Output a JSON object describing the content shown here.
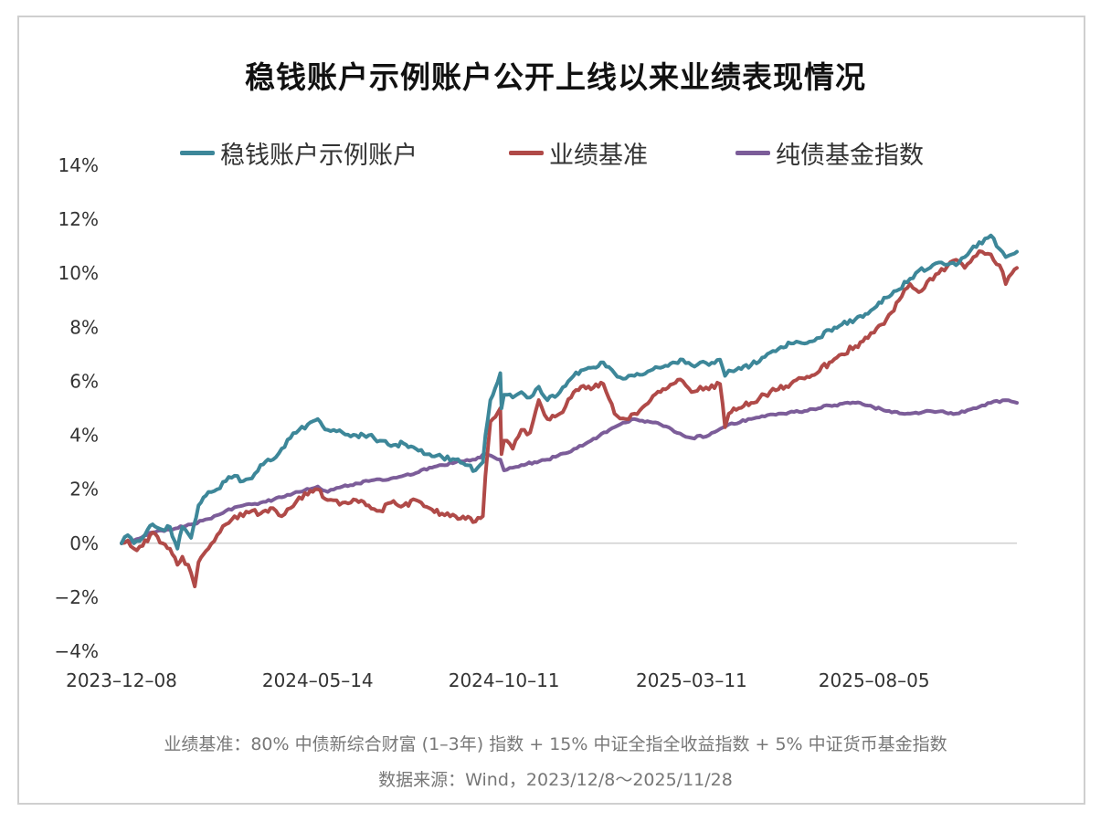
{
  "title": "稳钱账户示例账户公开上线以来业绩表现情况",
  "footnote": {
    "line1": "业绩基准：80% 中债新综合财富 (1–3年) 指数 + 15% 中证全指全收益指数 + 5% 中证货币基金指数",
    "line2": "数据来源：Wind，2023/12/8～2025/11/28"
  },
  "colors": {
    "series1": "#3d8799",
    "series2": "#b04a48",
    "series3": "#7c5d99",
    "grid": "#d0d0d0",
    "text": "#333333"
  },
  "chart_data": {
    "type": "line",
    "title": "稳钱账户示例账户公开上线以来业绩表现情况",
    "xlabel": "",
    "ylabel": "",
    "y_unit": "%",
    "ylim": [
      -4,
      14
    ],
    "y_ticks": [
      -4,
      -2,
      0,
      2,
      4,
      6,
      8,
      10,
      12,
      14
    ],
    "y_tick_labels": [
      "−4%",
      "−2%",
      "0%",
      "2%",
      "4%",
      "6%",
      "8%",
      "10%",
      "12%",
      "14%"
    ],
    "x_range": [
      "2023-12-08",
      "2025-11-28"
    ],
    "x_tick_labels": [
      "2023–12–08",
      "2024–05–14",
      "2024–10–11",
      "2025–03–11",
      "2025–08–05"
    ],
    "x_ticks": [
      "2023-12-08",
      "2024-05-14",
      "2024-10-11",
      "2025-03-11",
      "2025-08-05"
    ],
    "grid": "zero-line only",
    "legend_position": "top",
    "series": [
      {
        "name": "稳钱账户示例账户",
        "points": [
          [
            "2023-12-08",
            0.0
          ],
          [
            "2023-12-13",
            0.3
          ],
          [
            "2023-12-18",
            0.0
          ],
          [
            "2023-12-25",
            0.2
          ],
          [
            "2024-01-02",
            0.7
          ],
          [
            "2024-01-10",
            0.5
          ],
          [
            "2024-01-16",
            0.6
          ],
          [
            "2024-01-22",
            -0.2
          ],
          [
            "2024-01-26",
            0.6
          ],
          [
            "2024-02-02",
            0.2
          ],
          [
            "2024-02-08",
            1.4
          ],
          [
            "2024-02-16",
            1.9
          ],
          [
            "2024-02-23",
            2.0
          ],
          [
            "2024-03-01",
            2.3
          ],
          [
            "2024-03-08",
            2.5
          ],
          [
            "2024-03-15",
            2.3
          ],
          [
            "2024-03-22",
            2.4
          ],
          [
            "2024-03-29",
            2.9
          ],
          [
            "2024-04-08",
            3.1
          ],
          [
            "2024-04-15",
            3.5
          ],
          [
            "2024-04-22",
            3.9
          ],
          [
            "2024-04-29",
            4.2
          ],
          [
            "2024-05-06",
            4.4
          ],
          [
            "2024-05-14",
            4.6
          ],
          [
            "2024-05-22",
            4.2
          ],
          [
            "2024-06-03",
            4.1
          ],
          [
            "2024-06-14",
            4.0
          ],
          [
            "2024-06-24",
            4.0
          ],
          [
            "2024-07-03",
            3.8
          ],
          [
            "2024-07-12",
            3.6
          ],
          [
            "2024-07-22",
            3.7
          ],
          [
            "2024-08-01",
            3.5
          ],
          [
            "2024-08-12",
            3.3
          ],
          [
            "2024-08-22",
            3.2
          ],
          [
            "2024-09-02",
            3.1
          ],
          [
            "2024-09-10",
            2.9
          ],
          [
            "2024-09-18",
            2.7
          ],
          [
            "2024-09-24",
            3.0
          ],
          [
            "2024-09-26",
            4.0
          ],
          [
            "2024-09-30",
            5.3
          ],
          [
            "2024-10-08",
            6.3
          ],
          [
            "2024-10-09",
            5.0
          ],
          [
            "2024-10-11",
            5.5
          ],
          [
            "2024-10-18",
            5.4
          ],
          [
            "2024-10-25",
            5.6
          ],
          [
            "2024-11-01",
            5.4
          ],
          [
            "2024-11-08",
            5.8
          ],
          [
            "2024-11-15",
            5.3
          ],
          [
            "2024-11-25",
            5.6
          ],
          [
            "2024-12-04",
            6.1
          ],
          [
            "2024-12-12",
            6.4
          ],
          [
            "2024-12-20",
            6.5
          ],
          [
            "2024-12-30",
            6.7
          ],
          [
            "2025-01-08",
            6.3
          ],
          [
            "2025-01-17",
            6.1
          ],
          [
            "2025-01-24",
            6.2
          ],
          [
            "2025-02-06",
            6.4
          ],
          [
            "2025-02-14",
            6.5
          ],
          [
            "2025-02-24",
            6.7
          ],
          [
            "2025-03-04",
            6.8
          ],
          [
            "2025-03-11",
            6.6
          ],
          [
            "2025-03-18",
            6.7
          ],
          [
            "2025-03-25",
            6.6
          ],
          [
            "2025-04-03",
            6.8
          ],
          [
            "2025-04-07",
            6.2
          ],
          [
            "2025-04-10",
            6.4
          ],
          [
            "2025-04-18",
            6.5
          ],
          [
            "2025-04-28",
            6.6
          ],
          [
            "2025-05-09",
            6.9
          ],
          [
            "2025-05-20",
            7.2
          ],
          [
            "2025-05-30",
            7.4
          ],
          [
            "2025-06-10",
            7.4
          ],
          [
            "2025-06-20",
            7.6
          ],
          [
            "2025-06-30",
            7.9
          ],
          [
            "2025-07-10",
            8.1
          ],
          [
            "2025-07-21",
            8.3
          ],
          [
            "2025-07-31",
            8.5
          ],
          [
            "2025-08-05",
            8.7
          ],
          [
            "2025-08-15",
            9.1
          ],
          [
            "2025-08-25",
            9.4
          ],
          [
            "2025-09-03",
            9.8
          ],
          [
            "2025-09-10",
            10.1
          ],
          [
            "2025-09-19",
            10.2
          ],
          [
            "2025-09-26",
            10.4
          ],
          [
            "2025-10-10",
            10.3
          ],
          [
            "2025-10-17",
            10.6
          ],
          [
            "2025-10-24",
            11.0
          ],
          [
            "2025-10-31",
            11.1
          ],
          [
            "2025-11-07",
            11.4
          ],
          [
            "2025-11-14",
            10.9
          ],
          [
            "2025-11-19",
            10.6
          ],
          [
            "2025-11-24",
            10.7
          ],
          [
            "2025-11-28",
            10.8
          ]
        ]
      },
      {
        "name": "业绩基准",
        "points": [
          [
            "2023-12-08",
            0.0
          ],
          [
            "2023-12-13",
            0.1
          ],
          [
            "2023-12-18",
            -0.2
          ],
          [
            "2023-12-25",
            -0.1
          ],
          [
            "2024-01-02",
            0.4
          ],
          [
            "2024-01-10",
            0.0
          ],
          [
            "2024-01-16",
            -0.2
          ],
          [
            "2024-01-22",
            -0.8
          ],
          [
            "2024-01-26",
            -0.5
          ],
          [
            "2024-02-02",
            -1.1
          ],
          [
            "2024-02-05",
            -1.6
          ],
          [
            "2024-02-08",
            -0.7
          ],
          [
            "2024-02-16",
            -0.2
          ],
          [
            "2024-02-23",
            0.3
          ],
          [
            "2024-03-01",
            0.7
          ],
          [
            "2024-03-08",
            1.0
          ],
          [
            "2024-03-15",
            1.0
          ],
          [
            "2024-03-22",
            1.2
          ],
          [
            "2024-03-29",
            1.1
          ],
          [
            "2024-04-08",
            1.3
          ],
          [
            "2024-04-15",
            1.0
          ],
          [
            "2024-04-22",
            1.3
          ],
          [
            "2024-04-29",
            1.7
          ],
          [
            "2024-05-06",
            1.8
          ],
          [
            "2024-05-14",
            2.0
          ],
          [
            "2024-05-22",
            1.6
          ],
          [
            "2024-06-03",
            1.5
          ],
          [
            "2024-06-14",
            1.6
          ],
          [
            "2024-06-24",
            1.4
          ],
          [
            "2024-07-03",
            1.2
          ],
          [
            "2024-07-12",
            1.5
          ],
          [
            "2024-07-22",
            1.4
          ],
          [
            "2024-08-01",
            1.6
          ],
          [
            "2024-08-12",
            1.3
          ],
          [
            "2024-08-22",
            1.1
          ],
          [
            "2024-09-02",
            1.0
          ],
          [
            "2024-09-10",
            0.9
          ],
          [
            "2024-09-18",
            0.8
          ],
          [
            "2024-09-24",
            1.0
          ],
          [
            "2024-09-26",
            2.5
          ],
          [
            "2024-09-30",
            4.5
          ],
          [
            "2024-10-08",
            5.0
          ],
          [
            "2024-10-09",
            3.3
          ],
          [
            "2024-10-11",
            3.8
          ],
          [
            "2024-10-18",
            3.5
          ],
          [
            "2024-10-25",
            4.2
          ],
          [
            "2024-11-01",
            4.1
          ],
          [
            "2024-11-08",
            5.3
          ],
          [
            "2024-11-15",
            4.6
          ],
          [
            "2024-11-25",
            4.8
          ],
          [
            "2024-12-04",
            5.4
          ],
          [
            "2024-12-12",
            5.8
          ],
          [
            "2024-12-20",
            5.7
          ],
          [
            "2024-12-30",
            5.9
          ],
          [
            "2025-01-08",
            4.8
          ],
          [
            "2025-01-17",
            4.6
          ],
          [
            "2025-01-24",
            4.8
          ],
          [
            "2025-02-06",
            5.3
          ],
          [
            "2025-02-14",
            5.6
          ],
          [
            "2025-02-24",
            5.9
          ],
          [
            "2025-03-04",
            6.0
          ],
          [
            "2025-03-11",
            5.6
          ],
          [
            "2025-03-18",
            5.8
          ],
          [
            "2025-03-25",
            5.7
          ],
          [
            "2025-04-03",
            5.9
          ],
          [
            "2025-04-07",
            4.3
          ],
          [
            "2025-04-10",
            4.8
          ],
          [
            "2025-04-18",
            5.0
          ],
          [
            "2025-04-28",
            5.2
          ],
          [
            "2025-05-09",
            5.5
          ],
          [
            "2025-05-20",
            5.7
          ],
          [
            "2025-05-30",
            5.9
          ],
          [
            "2025-06-10",
            6.1
          ],
          [
            "2025-06-20",
            6.3
          ],
          [
            "2025-06-30",
            6.7
          ],
          [
            "2025-07-10",
            7.0
          ],
          [
            "2025-07-21",
            7.3
          ],
          [
            "2025-07-31",
            7.6
          ],
          [
            "2025-08-05",
            7.8
          ],
          [
            "2025-08-15",
            8.3
          ],
          [
            "2025-08-25",
            9.0
          ],
          [
            "2025-09-03",
            9.6
          ],
          [
            "2025-09-10",
            9.3
          ],
          [
            "2025-09-19",
            9.8
          ],
          [
            "2025-09-26",
            10.0
          ],
          [
            "2025-10-10",
            10.5
          ],
          [
            "2025-10-17",
            10.2
          ],
          [
            "2025-10-24",
            10.6
          ],
          [
            "2025-10-31",
            10.8
          ],
          [
            "2025-11-07",
            10.7
          ],
          [
            "2025-11-14",
            10.3
          ],
          [
            "2025-11-19",
            9.6
          ],
          [
            "2025-11-24",
            10.0
          ],
          [
            "2025-11-28",
            10.2
          ]
        ]
      },
      {
        "name": "纯债基金指数",
        "points": [
          [
            "2023-12-08",
            0.0
          ],
          [
            "2023-12-18",
            0.1
          ],
          [
            "2024-01-02",
            0.4
          ],
          [
            "2024-01-16",
            0.5
          ],
          [
            "2024-02-02",
            0.7
          ],
          [
            "2024-02-16",
            0.9
          ],
          [
            "2024-03-01",
            1.2
          ],
          [
            "2024-03-15",
            1.4
          ],
          [
            "2024-03-29",
            1.5
          ],
          [
            "2024-04-15",
            1.7
          ],
          [
            "2024-04-29",
            1.9
          ],
          [
            "2024-05-14",
            2.1
          ],
          [
            "2024-05-22",
            1.9
          ],
          [
            "2024-06-03",
            2.1
          ],
          [
            "2024-06-24",
            2.3
          ],
          [
            "2024-07-12",
            2.4
          ],
          [
            "2024-08-01",
            2.6
          ],
          [
            "2024-08-12",
            2.8
          ],
          [
            "2024-08-22",
            2.9
          ],
          [
            "2024-09-02",
            3.0
          ],
          [
            "2024-09-18",
            3.1
          ],
          [
            "2024-09-26",
            3.3
          ],
          [
            "2024-10-08",
            3.1
          ],
          [
            "2024-10-11",
            2.7
          ],
          [
            "2024-10-25",
            2.9
          ],
          [
            "2024-11-15",
            3.1
          ],
          [
            "2024-12-04",
            3.4
          ],
          [
            "2024-12-20",
            3.8
          ],
          [
            "2025-01-08",
            4.3
          ],
          [
            "2025-01-24",
            4.6
          ],
          [
            "2025-02-14",
            4.4
          ],
          [
            "2025-03-04",
            4.0
          ],
          [
            "2025-03-11",
            3.9
          ],
          [
            "2025-03-25",
            4.0
          ],
          [
            "2025-04-10",
            4.4
          ],
          [
            "2025-04-28",
            4.6
          ],
          [
            "2025-05-20",
            4.8
          ],
          [
            "2025-06-10",
            4.9
          ],
          [
            "2025-06-30",
            5.1
          ],
          [
            "2025-07-21",
            5.2
          ],
          [
            "2025-07-31",
            5.1
          ],
          [
            "2025-08-15",
            4.9
          ],
          [
            "2025-09-03",
            4.8
          ],
          [
            "2025-09-19",
            4.9
          ],
          [
            "2025-10-10",
            4.8
          ],
          [
            "2025-10-24",
            5.0
          ],
          [
            "2025-11-07",
            5.2
          ],
          [
            "2025-11-19",
            5.3
          ],
          [
            "2025-11-28",
            5.2
          ]
        ]
      }
    ]
  }
}
